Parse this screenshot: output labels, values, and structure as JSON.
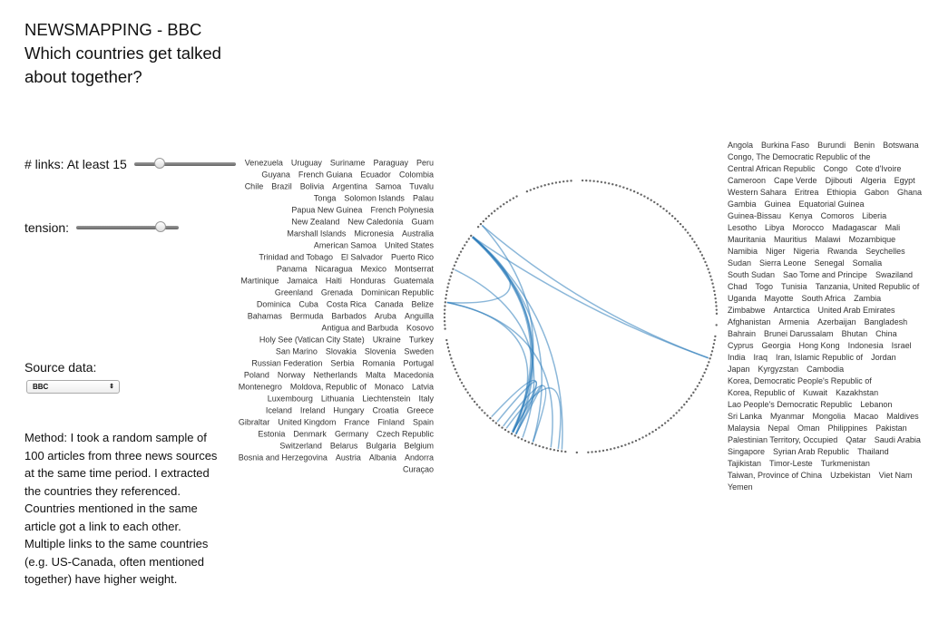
{
  "header": {
    "title": "NEWSMAPPING - BBC",
    "subtitle": "Which countries get talked about together?"
  },
  "controls": {
    "links_label": "# links: At least 15",
    "links_min": 15,
    "links_slider_fraction": 0.25,
    "tension_label": "tension:",
    "tension_value": 0.82,
    "source_label": "Source data:",
    "source_selected": "BBC"
  },
  "method": "Method: I took a random sample of 100 articles from three news sources at the same time period. I extracted the countries they referenced. Countries mentioned in the same article got a link to each other. Multiple links to the same countries (e.g. US-Canada, often mentioned together) have higher weight.",
  "colors": {
    "link": "#2b7bba",
    "label": "#333333"
  },
  "chart_data": {
    "type": "hierarchical-edge-bundling",
    "groups": [
      [
        "Angola",
        "Burkina Faso",
        "Burundi",
        "Benin",
        "Botswana",
        "Congo, The Democratic Republic of the",
        "Central African Republic",
        "Congo",
        "Cote d'Ivoire",
        "Cameroon",
        "Cape Verde",
        "Djibouti",
        "Algeria",
        "Egypt",
        "Western Sahara",
        "Eritrea",
        "Ethiopia",
        "Gabon",
        "Ghana",
        "Gambia",
        "Guinea",
        "Equatorial Guinea",
        "Guinea-Bissau",
        "Kenya",
        "Comoros",
        "Liberia",
        "Lesotho",
        "Libya",
        "Morocco",
        "Madagascar",
        "Mali",
        "Mauritania",
        "Mauritius",
        "Malawi",
        "Mozambique",
        "Namibia",
        "Niger",
        "Nigeria",
        "Rwanda",
        "Seychelles",
        "Sudan",
        "Sierra Leone",
        "Senegal",
        "Somalia",
        "South Sudan",
        "Sao Tome and Principe",
        "Swaziland",
        "Chad",
        "Togo",
        "Tunisia",
        "Tanzania, United Republic of",
        "Uganda",
        "Mayotte",
        "South Africa",
        "Zambia",
        "Zimbabwe"
      ],
      [
        "Antarctica"
      ],
      [
        "United Arab Emirates",
        "Afghanistan",
        "Armenia",
        "Azerbaijan",
        "Bangladesh",
        "Bahrain",
        "Brunei Darussalam",
        "Bhutan",
        "China",
        "Cyprus",
        "Georgia",
        "Hong Kong",
        "Indonesia",
        "Israel",
        "India",
        "Iraq",
        "Iran, Islamic Republic of",
        "Jordan",
        "Japan",
        "Kyrgyzstan",
        "Cambodia",
        "Korea, Democratic People's Republic of",
        "Korea, Republic of",
        "Kuwait",
        "Kazakhstan",
        "Lao People's Democratic Republic",
        "Lebanon",
        "Sri Lanka",
        "Myanmar",
        "Mongolia",
        "Macao",
        "Maldives",
        "Malaysia",
        "Nepal",
        "Oman",
        "Philippines",
        "Pakistan",
        "Palestinian Territory, Occupied",
        "Qatar",
        "Saudi Arabia",
        "Singapore",
        "Syrian Arab Republic",
        "Thailand",
        "Tajikistan",
        "Timor-Leste",
        "Turkmenistan",
        "Taiwan, Province of China",
        "Uzbekistan",
        "Viet Nam",
        "Yemen"
      ],
      [
        "Curaçao"
      ],
      [
        "Andorra",
        "Albania",
        "Austria",
        "Bosnia and Herzegovina",
        "Belgium",
        "Bulgaria",
        "Belarus",
        "Switzerland",
        "Czech Republic",
        "Germany",
        "Denmark",
        "Estonia",
        "Spain",
        "Finland",
        "France",
        "United Kingdom",
        "Gibraltar",
        "Greece",
        "Croatia",
        "Hungary",
        "Ireland",
        "Iceland",
        "Italy",
        "Liechtenstein",
        "Lithuania",
        "Luxembourg",
        "Latvia",
        "Monaco",
        "Moldova, Republic of",
        "Montenegro",
        "Macedonia",
        "Malta",
        "Netherlands",
        "Norway",
        "Poland",
        "Portugal",
        "Romania",
        "Serbia",
        "Russian Federation",
        "Sweden",
        "Slovenia",
        "Slovakia",
        "San Marino",
        "Turkey",
        "Ukraine",
        "Holy See (Vatican City State)",
        "Kosovo"
      ],
      [
        "Antigua and Barbuda",
        "Anguilla",
        "Aruba",
        "Barbados",
        "Bermuda",
        "Bahamas",
        "Belize",
        "Canada",
        "Costa Rica",
        "Cuba",
        "Dominica",
        "Dominican Republic",
        "Grenada",
        "Greenland",
        "Guatemala",
        "Honduras",
        "Haiti",
        "Jamaica",
        "Martinique",
        "Montserrat",
        "Mexico",
        "Nicaragua",
        "Panama",
        "Puerto Rico",
        "El Salvador",
        "Trinidad and Tobago",
        "United States"
      ],
      [
        "American Samoa",
        "Australia",
        "Micronesia",
        "Marshall Islands",
        "Guam",
        "New Caledonia",
        "New Zealand",
        "French Polynesia",
        "Papua New Guinea",
        "Palau",
        "Solomon Islands",
        "Tonga",
        "Tuvalu",
        "Samoa"
      ],
      [
        "Argentina",
        "Bolivia",
        "Brazil",
        "Chile",
        "Colombia",
        "Ecuador",
        "French Guiana",
        "Guyana",
        "Peru",
        "Paraguay",
        "Suriname",
        "Uruguay",
        "Venezuela"
      ]
    ],
    "links": [
      {
        "source": "United States",
        "target": "United Kingdom",
        "weight": 3
      },
      {
        "source": "United States",
        "target": "France",
        "weight": 2
      },
      {
        "source": "United States",
        "target": "Germany",
        "weight": 1
      },
      {
        "source": "United States",
        "target": "Canada",
        "weight": 1
      },
      {
        "source": "United States",
        "target": "Brunei Darussalam",
        "weight": 1
      },
      {
        "source": "Canada",
        "target": "United Kingdom",
        "weight": 1
      },
      {
        "source": "Canada",
        "target": "Belgium",
        "weight": 1
      },
      {
        "source": "Haiti",
        "target": "Spain",
        "weight": 1
      },
      {
        "source": "Australia",
        "target": "United Kingdom",
        "weight": 1
      },
      {
        "source": "Australia",
        "target": "Brunei Darussalam",
        "weight": 1
      },
      {
        "source": "United Kingdom",
        "target": "France",
        "weight": 1
      },
      {
        "source": "United Kingdom",
        "target": "Ireland",
        "weight": 1
      },
      {
        "source": "France",
        "target": "Italy",
        "weight": 1
      },
      {
        "source": "Germany",
        "target": "Croatia",
        "weight": 1
      },
      {
        "source": "Greece",
        "target": "Austria",
        "weight": 1
      },
      {
        "source": "United States",
        "target": "Albania",
        "weight": 1
      }
    ]
  }
}
